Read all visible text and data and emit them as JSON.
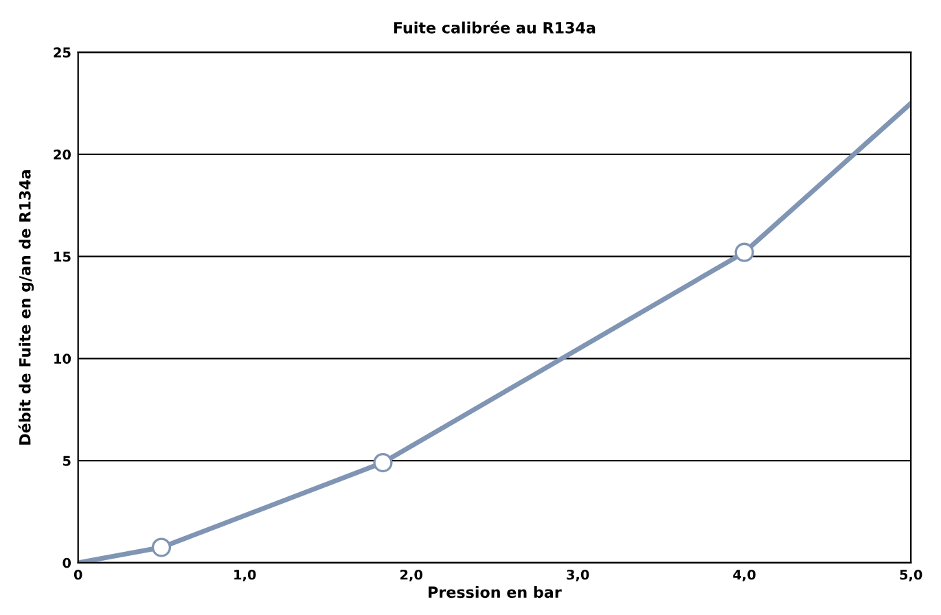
{
  "chart_data": {
    "type": "line",
    "title": "Fuite calibrée au R134a",
    "xlabel": "Pression en bar",
    "ylabel": "Débit de Fuite en g/an de R134a",
    "series": [
      {
        "color": "#7f95b3",
        "x": [
          0,
          0.5,
          1.83,
          4,
          5
        ],
        "values": [
          0,
          0.75,
          4.9,
          15.2,
          22.5
        ],
        "marker": "none"
      },
      {
        "type": "scatter",
        "color": "#7f95b3",
        "x": [
          0.5,
          1.83,
          4
        ],
        "values": [
          0.75,
          4.9,
          15.2
        ],
        "marker": "circle"
      }
    ],
    "xlim": [
      0,
      5
    ],
    "xticks": [
      0,
      {
        "value": 1,
        "label": "1,0"
      },
      {
        "value": 2,
        "label": "2,0"
      },
      {
        "value": 3,
        "label": "3,0"
      },
      {
        "value": 4,
        "label": "4,0"
      },
      {
        "value": 5,
        "label": "5,0"
      }
    ],
    "ylim": [
      0,
      25
    ],
    "yticks": [
      0,
      5,
      10,
      15,
      20,
      25
    ],
    "grid": "y",
    "legend": false
  }
}
